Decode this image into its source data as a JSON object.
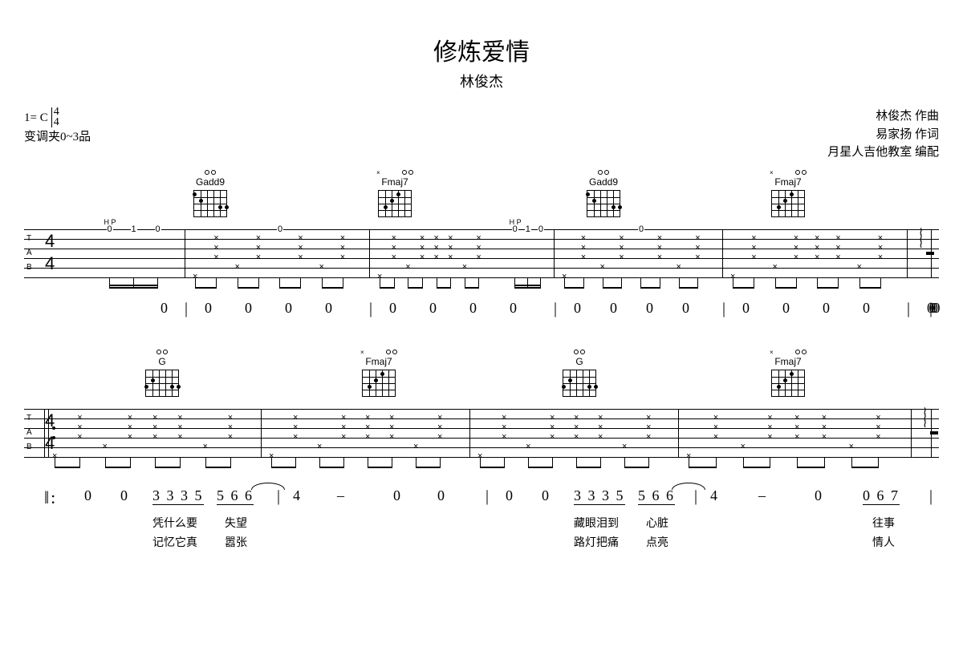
{
  "title": "修炼爱情",
  "artist": "林俊杰",
  "header": {
    "key": "1= C",
    "time_top": "4",
    "time_bot": "4",
    "capo": "变调夹0~3品",
    "credit1": "林俊杰  作曲",
    "credit2": "易家扬  作词",
    "credit3": "月星人吉他教室  编配"
  },
  "chords": {
    "gadd9": "Gadd9",
    "fmaj7": "Fmaj7",
    "g": "G"
  },
  "hp": "H P",
  "tab_nums": [
    "0",
    "1",
    "0"
  ],
  "tab_marks": {
    "T": "T",
    "A": "A",
    "B": "B"
  },
  "num_row1_zeros": "0",
  "num_row2": {
    "zeros": "0",
    "phrase1": "3 3 3 5",
    "phrase2": "5 6 6",
    "four": "4",
    "dash": "–",
    "ending": "0 6 7"
  },
  "lyrics": {
    "l1a": "凭什么要",
    "l1b": "失望",
    "l1c": "藏眼泪到",
    "l1d": "心脏",
    "l1e": "往事",
    "l2a": "记忆它真",
    "l2b": "嚣张",
    "l2c": "路灯把痛",
    "l2d": "点亮",
    "l2e": "情人"
  }
}
